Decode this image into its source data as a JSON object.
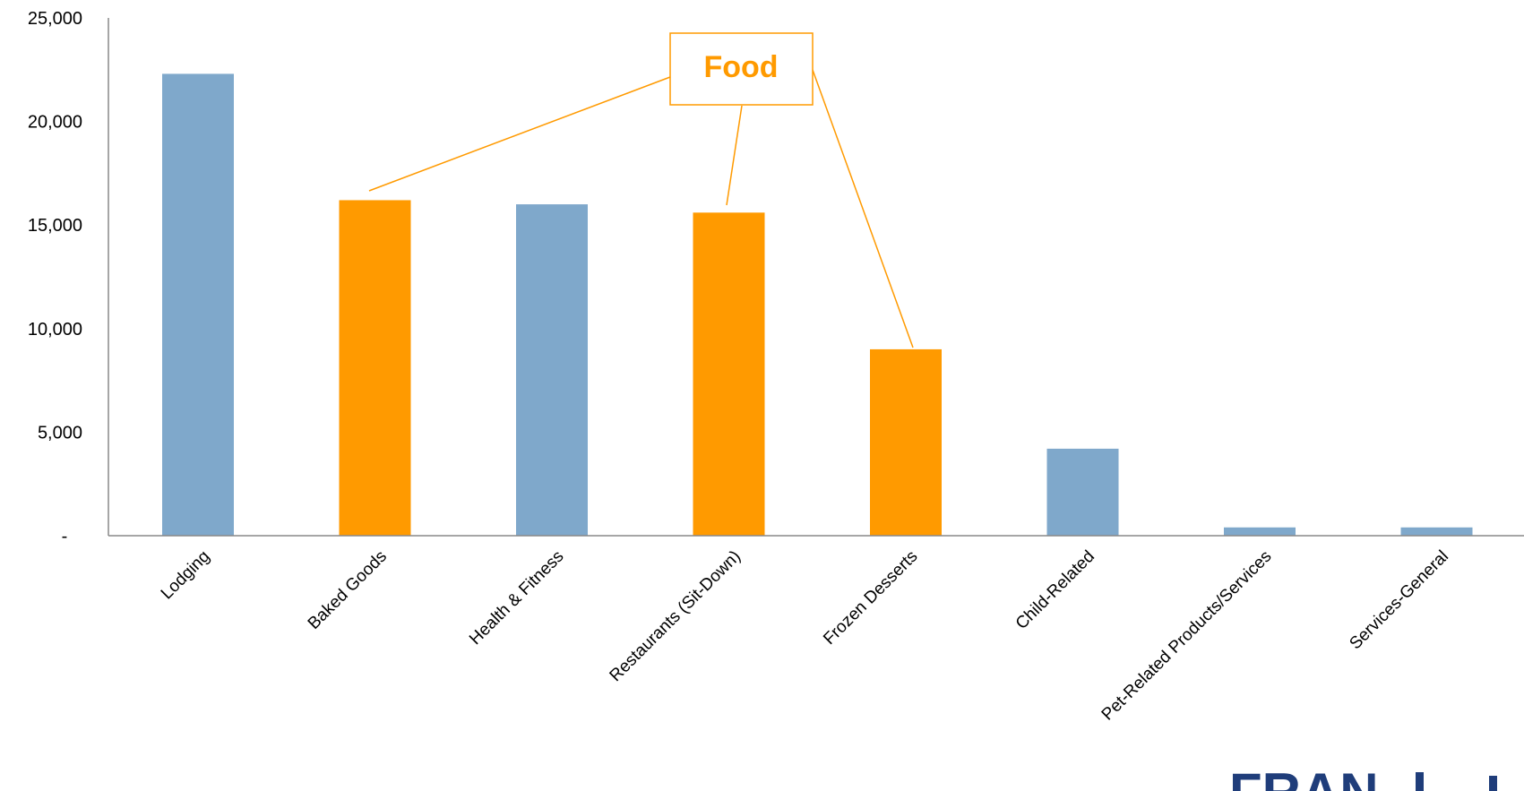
{
  "chart_data": {
    "type": "bar",
    "title": "",
    "xlabel": "",
    "ylabel": "",
    "ylim": [
      0,
      25000
    ],
    "yticks": [
      {
        "value": 0,
        "label": "-"
      },
      {
        "value": 5000,
        "label": "5,000"
      },
      {
        "value": 10000,
        "label": "10,000"
      },
      {
        "value": 15000,
        "label": "15,000"
      },
      {
        "value": 20000,
        "label": "20,000"
      },
      {
        "value": 25000,
        "label": "25,000"
      }
    ],
    "categories": [
      "Lodging",
      "Baked Goods",
      "Health & Fitness",
      "Restaurants (Sit-Down)",
      "Frozen Desserts",
      "Child-Related",
      "Pet-Related Products/Services",
      "Services-General"
    ],
    "values": [
      22300,
      16200,
      16000,
      15600,
      9000,
      4200,
      400,
      400
    ],
    "highlighted": [
      false,
      true,
      false,
      true,
      true,
      false,
      false,
      false
    ],
    "grid": false,
    "annotation": {
      "text": "Food",
      "targets": [
        "Baked Goods",
        "Restaurants (Sit-Down)",
        "Frozen Desserts"
      ]
    }
  },
  "colors": {
    "default_bar": "#7fa8cb",
    "highlight_bar": "#ff9a00",
    "axis": "#888888",
    "annotation": "#ff9a00"
  },
  "logo": {
    "text": "FRAN",
    "icon": "franchise-logo-icon"
  }
}
